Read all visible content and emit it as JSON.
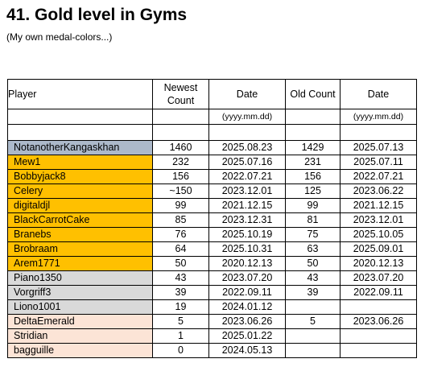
{
  "title": "41. Gold level in Gyms",
  "subtitle": "(My own medal-colors...)",
  "table": {
    "headers": {
      "player": "Player",
      "newest_count": "Newest Count",
      "date": "Date",
      "old_count": "Old Count",
      "date2": "Date"
    },
    "date_format": "(yyyy.mm.dd)",
    "tier_colors": {
      "platinum": "#acb9ca",
      "gold": "#ffc000",
      "silver": "#d9d9d9",
      "bronze": "#fce4d6"
    },
    "rows": [
      {
        "player": "NotanotherKangaskhan",
        "newest_count": "1460",
        "date": "2025.08.23",
        "old_count": "1429",
        "old_date": "2025.07.13",
        "tier": "platinum"
      },
      {
        "player": "Mew1",
        "newest_count": "232",
        "date": "2025.07.16",
        "old_count": "231",
        "old_date": "2025.07.11",
        "tier": "gold"
      },
      {
        "player": "Bobbyjack8",
        "newest_count": "156",
        "date": "2022.07.21",
        "old_count": "156",
        "old_date": "2022.07.21",
        "tier": "gold"
      },
      {
        "player": "Celery",
        "newest_count": "~150",
        "date": "2023.12.01",
        "old_count": "125",
        "old_date": "2023.06.22",
        "tier": "gold"
      },
      {
        "player": "digitaldjl",
        "newest_count": "99",
        "date": "2021.12.15",
        "old_count": "99",
        "old_date": "2021.12.15",
        "tier": "gold"
      },
      {
        "player": "BlackCarrotCake",
        "newest_count": "85",
        "date": "2023.12.31",
        "old_count": "81",
        "old_date": "2023.12.01",
        "tier": "gold"
      },
      {
        "player": "Branebs",
        "newest_count": "76",
        "date": "2025.10.19",
        "old_count": "75",
        "old_date": "2025.10.05",
        "tier": "gold"
      },
      {
        "player": "Brobraam",
        "newest_count": "64",
        "date": "2025.10.31",
        "old_count": "63",
        "old_date": "2025.09.01",
        "tier": "gold"
      },
      {
        "player": "Arem1771",
        "newest_count": "50",
        "date": "2020.12.13",
        "old_count": "50",
        "old_date": "2020.12.13",
        "tier": "gold"
      },
      {
        "player": "Piano1350",
        "newest_count": "43",
        "date": "2023.07.20",
        "old_count": "43",
        "old_date": "2023.07.20",
        "tier": "silver"
      },
      {
        "player": "Vorgriff3",
        "newest_count": "39",
        "date": "2022.09.11",
        "old_count": "39",
        "old_date": "2022.09.11",
        "tier": "silver"
      },
      {
        "player": "Liono1001",
        "newest_count": "19",
        "date": "2024.01.12",
        "old_count": "",
        "old_date": "",
        "tier": "silver"
      },
      {
        "player": "DeltaEmerald",
        "newest_count": "5",
        "date": "2023.06.26",
        "old_count": "5",
        "old_date": "2023.06.26",
        "tier": "bronze"
      },
      {
        "player": "Stridian",
        "newest_count": "1",
        "date": "2025.01.22",
        "old_count": "",
        "old_date": "",
        "tier": "bronze"
      },
      {
        "player": "bagguille",
        "newest_count": "0",
        "date": "2024.05.13",
        "old_count": "",
        "old_date": "",
        "tier": "bronze"
      }
    ]
  }
}
